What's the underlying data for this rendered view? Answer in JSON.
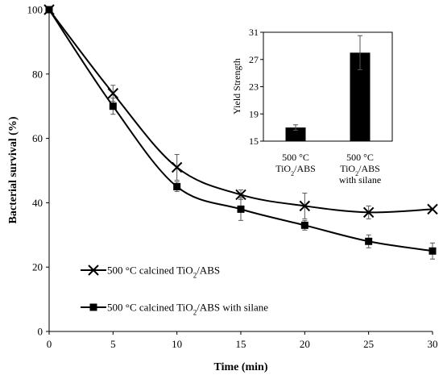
{
  "chart_data": [
    {
      "type": "line",
      "title": "",
      "xlabel": "Time (min)",
      "ylabel": "Bacterial survival (%)",
      "xlim": [
        0,
        30
      ],
      "ylim": [
        0,
        100
      ],
      "xticks": [
        0,
        5,
        10,
        15,
        20,
        25,
        30
      ],
      "yticks": [
        0,
        20,
        40,
        60,
        80,
        100
      ],
      "grid": false,
      "legend_position": "bottom-left",
      "x": [
        0,
        5,
        10,
        15,
        20,
        25,
        30
      ],
      "series": [
        {
          "name_prefix": "500 °C calcined TiO",
          "name_sub": "2",
          "name_suffix": "/ABS",
          "marker": "x",
          "color": "#000000",
          "values": [
            100,
            74,
            51,
            42.5,
            39,
            37,
            38
          ],
          "errors": [
            0,
            2.5,
            4,
            1.5,
            4,
            2,
            0
          ]
        },
        {
          "name_prefix": "500 °C calcined TiO",
          "name_sub": "2",
          "name_suffix": "/ABS with silane",
          "marker": "square",
          "color": "#000000",
          "values": [
            100,
            70,
            45,
            38,
            33,
            28,
            25
          ],
          "errors": [
            0,
            2.5,
            1.5,
            3.5,
            1.5,
            2,
            2.5
          ]
        }
      ]
    },
    {
      "type": "bar",
      "title": "",
      "ylabel": "Yield Strength",
      "ylim": [
        15,
        31
      ],
      "yticks": [
        15,
        19,
        23,
        27,
        31
      ],
      "categories": [
        {
          "line1": "500 °C",
          "line2_prefix": "TiO",
          "line2_sub": "2",
          "line2_suffix": "/ABS",
          "line3": ""
        },
        {
          "line1": "500 °C",
          "line2_prefix": "TiO",
          "line2_sub": "2",
          "line2_suffix": "/ABS",
          "line3": "with silane"
        }
      ],
      "values": [
        17,
        28
      ],
      "errors": [
        0.4,
        2.5
      ],
      "bar_color": "#000000"
    }
  ]
}
